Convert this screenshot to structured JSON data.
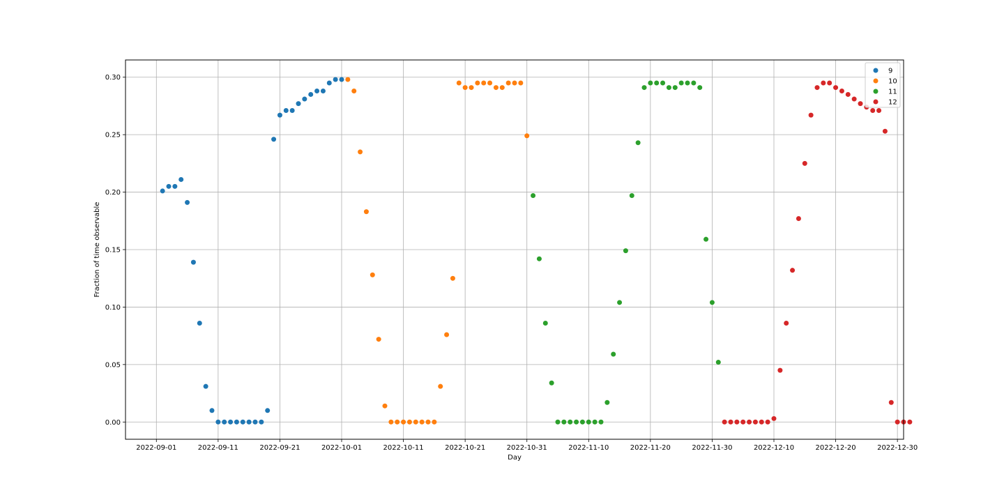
{
  "chart_data": {
    "type": "scatter",
    "xlabel": "Day",
    "ylabel": "Fraction of time observable",
    "x_tick_labels": [
      "2022-09-01",
      "2022-09-11",
      "2022-09-21",
      "2022-10-01",
      "2022-10-11",
      "2022-10-21",
      "2022-10-31",
      "2022-11-10",
      "2022-11-20",
      "2022-11-30",
      "2022-12-10",
      "2022-12-20",
      "2022-12-30"
    ],
    "y_tick_labels": [
      "0.00",
      "0.05",
      "0.10",
      "0.15",
      "0.20",
      "0.25",
      "0.30"
    ],
    "xlim": [
      "2022-08-27",
      "2022-12-31"
    ],
    "ylim": [
      -0.015,
      0.315
    ],
    "grid": true,
    "legend_position": "top-right",
    "series": [
      {
        "name": "9",
        "color": "#1f77b4",
        "points": [
          [
            "2022-09-02",
            0.201
          ],
          [
            "2022-09-03",
            0.205
          ],
          [
            "2022-09-04",
            0.205
          ],
          [
            "2022-09-05",
            0.211
          ],
          [
            "2022-09-06",
            0.191
          ],
          [
            "2022-09-07",
            0.139
          ],
          [
            "2022-09-08",
            0.086
          ],
          [
            "2022-09-09",
            0.031
          ],
          [
            "2022-09-10",
            0.01
          ],
          [
            "2022-09-11",
            0.0
          ],
          [
            "2022-09-12",
            0.0
          ],
          [
            "2022-09-13",
            0.0
          ],
          [
            "2022-09-14",
            0.0
          ],
          [
            "2022-09-15",
            0.0
          ],
          [
            "2022-09-16",
            0.0
          ],
          [
            "2022-09-17",
            0.0
          ],
          [
            "2022-09-18",
            0.0
          ],
          [
            "2022-09-19",
            0.01
          ],
          [
            "2022-09-20",
            0.246
          ],
          [
            "2022-09-21",
            0.267
          ],
          [
            "2022-09-22",
            0.271
          ],
          [
            "2022-09-23",
            0.271
          ],
          [
            "2022-09-24",
            0.277
          ],
          [
            "2022-09-25",
            0.281
          ],
          [
            "2022-09-26",
            0.285
          ],
          [
            "2022-09-27",
            0.288
          ],
          [
            "2022-09-28",
            0.288
          ],
          [
            "2022-09-29",
            0.295
          ],
          [
            "2022-09-30",
            0.298
          ],
          [
            "2022-10-01",
            0.298
          ]
        ]
      },
      {
        "name": "10",
        "color": "#ff7f0e",
        "points": [
          [
            "2022-10-02",
            0.298
          ],
          [
            "2022-10-03",
            0.288
          ],
          [
            "2022-10-04",
            0.235
          ],
          [
            "2022-10-05",
            0.183
          ],
          [
            "2022-10-06",
            0.128
          ],
          [
            "2022-10-07",
            0.072
          ],
          [
            "2022-10-08",
            0.014
          ],
          [
            "2022-10-09",
            0.0
          ],
          [
            "2022-10-10",
            0.0
          ],
          [
            "2022-10-11",
            0.0
          ],
          [
            "2022-10-12",
            0.0
          ],
          [
            "2022-10-13",
            0.0
          ],
          [
            "2022-10-14",
            0.0
          ],
          [
            "2022-10-15",
            0.0
          ],
          [
            "2022-10-16",
            0.0
          ],
          [
            "2022-10-17",
            0.031
          ],
          [
            "2022-10-18",
            0.076
          ],
          [
            "2022-10-19",
            0.125
          ],
          [
            "2022-10-20",
            0.295
          ],
          [
            "2022-10-21",
            0.291
          ],
          [
            "2022-10-22",
            0.291
          ],
          [
            "2022-10-23",
            0.295
          ],
          [
            "2022-10-24",
            0.295
          ],
          [
            "2022-10-25",
            0.295
          ],
          [
            "2022-10-26",
            0.291
          ],
          [
            "2022-10-27",
            0.291
          ],
          [
            "2022-10-28",
            0.295
          ],
          [
            "2022-10-29",
            0.295
          ],
          [
            "2022-10-30",
            0.295
          ],
          [
            "2022-10-31",
            0.249
          ]
        ]
      },
      {
        "name": "11",
        "color": "#2ca02c",
        "points": [
          [
            "2022-11-01",
            0.197
          ],
          [
            "2022-11-02",
            0.142
          ],
          [
            "2022-11-03",
            0.086
          ],
          [
            "2022-11-04",
            0.034
          ],
          [
            "2022-11-05",
            0.0
          ],
          [
            "2022-11-06",
            0.0
          ],
          [
            "2022-11-07",
            0.0
          ],
          [
            "2022-11-08",
            0.0
          ],
          [
            "2022-11-09",
            0.0
          ],
          [
            "2022-11-10",
            0.0
          ],
          [
            "2022-11-11",
            0.0
          ],
          [
            "2022-11-12",
            0.0
          ],
          [
            "2022-11-13",
            0.017
          ],
          [
            "2022-11-14",
            0.059
          ],
          [
            "2022-11-15",
            0.104
          ],
          [
            "2022-11-16",
            0.149
          ],
          [
            "2022-11-17",
            0.197
          ],
          [
            "2022-11-18",
            0.243
          ],
          [
            "2022-11-19",
            0.291
          ],
          [
            "2022-11-20",
            0.295
          ],
          [
            "2022-11-21",
            0.295
          ],
          [
            "2022-11-22",
            0.295
          ],
          [
            "2022-11-23",
            0.291
          ],
          [
            "2022-11-24",
            0.291
          ],
          [
            "2022-11-25",
            0.295
          ],
          [
            "2022-11-26",
            0.295
          ],
          [
            "2022-11-27",
            0.295
          ],
          [
            "2022-11-28",
            0.291
          ],
          [
            "2022-11-29",
            0.159
          ],
          [
            "2022-11-30",
            0.104
          ],
          [
            "2022-12-01",
            0.052
          ]
        ]
      },
      {
        "name": "12",
        "color": "#d62728",
        "points": [
          [
            "2022-12-02",
            0.0
          ],
          [
            "2022-12-03",
            0.0
          ],
          [
            "2022-12-04",
            0.0
          ],
          [
            "2022-12-05",
            0.0
          ],
          [
            "2022-12-06",
            0.0
          ],
          [
            "2022-12-07",
            0.0
          ],
          [
            "2022-12-08",
            0.0
          ],
          [
            "2022-12-09",
            0.0
          ],
          [
            "2022-12-10",
            0.003
          ],
          [
            "2022-12-11",
            0.045
          ],
          [
            "2022-12-12",
            0.086
          ],
          [
            "2022-12-13",
            0.132
          ],
          [
            "2022-12-14",
            0.177
          ],
          [
            "2022-12-15",
            0.225
          ],
          [
            "2022-12-16",
            0.267
          ],
          [
            "2022-12-17",
            0.291
          ],
          [
            "2022-12-18",
            0.295
          ],
          [
            "2022-12-19",
            0.295
          ],
          [
            "2022-12-20",
            0.291
          ],
          [
            "2022-12-21",
            0.288
          ],
          [
            "2022-12-22",
            0.285
          ],
          [
            "2022-12-23",
            0.281
          ],
          [
            "2022-12-24",
            0.277
          ],
          [
            "2022-12-25",
            0.274
          ],
          [
            "2022-12-26",
            0.271
          ],
          [
            "2022-12-27",
            0.271
          ],
          [
            "2022-12-28",
            0.253
          ],
          [
            "2022-12-29",
            0.017
          ],
          [
            "2022-12-30",
            0.0
          ],
          [
            "2022-12-31",
            0.0
          ],
          [
            "2023-01-01",
            0.0
          ]
        ]
      }
    ]
  }
}
